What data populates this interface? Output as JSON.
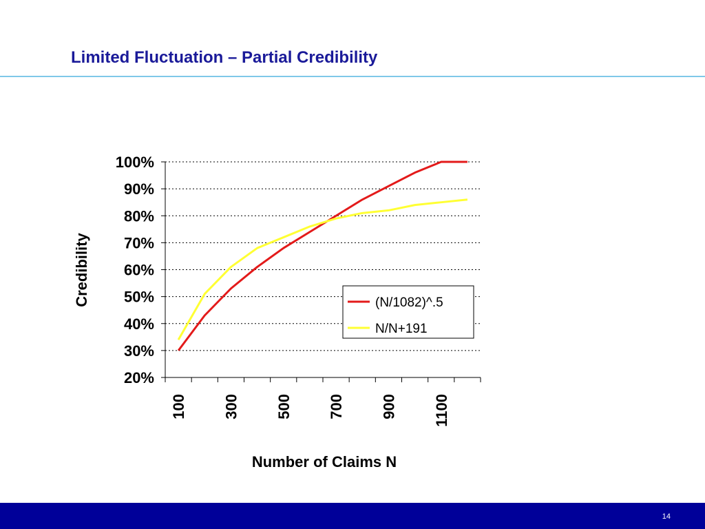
{
  "slide": {
    "title": "Limited Fluctuation – Partial Credibility",
    "page_number": "14"
  },
  "colors": {
    "title": "#1a1a99",
    "rule": "#7ec8e8",
    "footer": "#000099",
    "series_red": "#e31a1a",
    "series_yellow": "#ffff33"
  },
  "chart_data": {
    "type": "line",
    "xlabel": "Number of Claims N",
    "ylabel": "Credibility",
    "x": [
      100,
      200,
      300,
      400,
      500,
      600,
      700,
      800,
      900,
      1000,
      1100,
      1200
    ],
    "x_tick_labels": [
      "100",
      "300",
      "500",
      "700",
      "900",
      "1100"
    ],
    "ylim": [
      0.2,
      1.0
    ],
    "y_ticks": [
      0.2,
      0.3,
      0.4,
      0.5,
      0.6,
      0.7,
      0.8,
      0.9,
      1.0
    ],
    "y_tick_labels": [
      "20%",
      "30%",
      "40%",
      "50%",
      "60%",
      "70%",
      "80%",
      "90%",
      "100%"
    ],
    "grid": true,
    "legend_position": "right",
    "series": [
      {
        "name": "(N/1082)^.5",
        "color": "#e31a1a",
        "values": [
          0.3,
          0.43,
          0.53,
          0.61,
          0.68,
          0.74,
          0.8,
          0.86,
          0.91,
          0.96,
          1.0,
          1.0
        ]
      },
      {
        "name": "N/N+191",
        "color": "#ffff33",
        "values": [
          0.34,
          0.51,
          0.61,
          0.68,
          0.72,
          0.76,
          0.79,
          0.81,
          0.82,
          0.84,
          0.85,
          0.86
        ]
      }
    ]
  }
}
